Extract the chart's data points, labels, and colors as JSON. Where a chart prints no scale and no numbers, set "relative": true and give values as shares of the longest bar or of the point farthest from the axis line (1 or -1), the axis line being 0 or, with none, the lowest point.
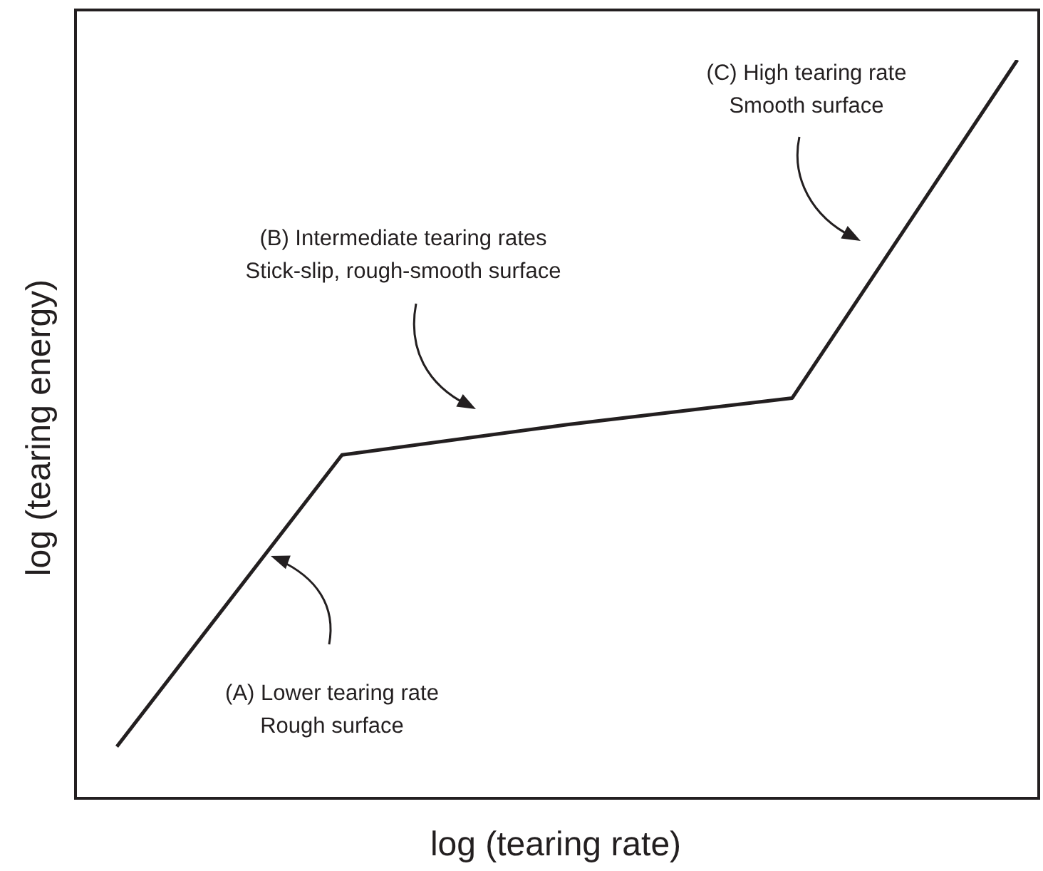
{
  "chart_data": {
    "type": "line",
    "relative": true,
    "xlabel": "log (tearing rate)",
    "ylabel": "log (tearing energy)",
    "categories": [
      null,
      null,
      null,
      null,
      null
    ],
    "series": [
      {
        "color": "#231f20",
        "values": [
          0.07,
          0.465,
          0.506,
          0.542,
          1
        ]
      }
    ],
    "marker": "none",
    "line_style": "solid",
    "grid": false,
    "legend": false,
    "annotations": [
      "(A) Lower tearing rate\nRough surface",
      "(B) Intermediate tearing rates\nStick-slip, rough-smooth surface",
      "(C) High tearing rate\nSmooth surface"
    ]
  }
}
